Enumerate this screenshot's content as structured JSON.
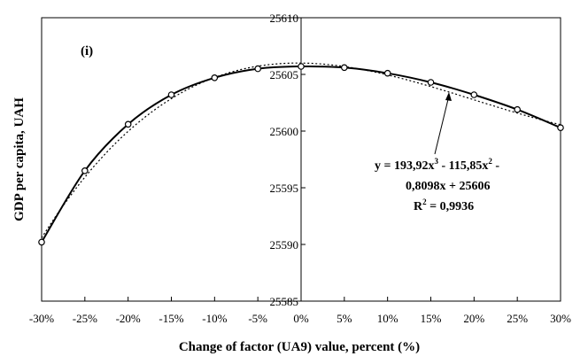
{
  "chart_data": {
    "type": "line",
    "panel_label": "(i)",
    "xlabel": "Change of factor (UA9) value, percent (%)",
    "ylabel": "GDP per capita, UAH",
    "xlim": [
      -30,
      30
    ],
    "ylim": [
      25585,
      25610
    ],
    "x_ticks": [
      -30,
      -25,
      -20,
      -15,
      -10,
      -5,
      0,
      5,
      10,
      15,
      20,
      25,
      30
    ],
    "x_tick_labels": [
      "-30%",
      "-25%",
      "-20%",
      "-15%",
      "-10%",
      "-5%",
      "0%",
      "5%",
      "10%",
      "15%",
      "20%",
      "25%",
      "30%"
    ],
    "y_ticks": [
      25585,
      25590,
      25595,
      25600,
      25605,
      25610
    ],
    "y_tick_labels": [
      "25585",
      "25590",
      "25595",
      "25600",
      "25605",
      "25610"
    ],
    "series": [
      {
        "style": "solid-with-markers",
        "x": [
          -30,
          -25,
          -20,
          -15,
          -10,
          -5,
          0,
          5,
          10,
          15,
          20,
          25,
          30
        ],
        "y": [
          25590.2,
          25596.5,
          25600.6,
          25603.2,
          25604.7,
          25605.5,
          25605.7,
          25605.6,
          25605.1,
          25604.3,
          25603.2,
          25601.9,
          25600.3
        ]
      },
      {
        "style": "dotted-trend",
        "coefficients": [
          193.92,
          -115.85,
          -0.8098,
          25606
        ]
      }
    ],
    "trend_equation": {
      "line1_a": "y = 193,92x",
      "line1_b": "3",
      "line1_c": " - 115,85x",
      "line1_d": "2",
      "line1_e": " -",
      "line2": "0,8098x + 25606",
      "line3_a": "R",
      "line3_b": "2",
      "line3_c": " = 0,9936"
    },
    "grid": false,
    "legend": "none"
  }
}
